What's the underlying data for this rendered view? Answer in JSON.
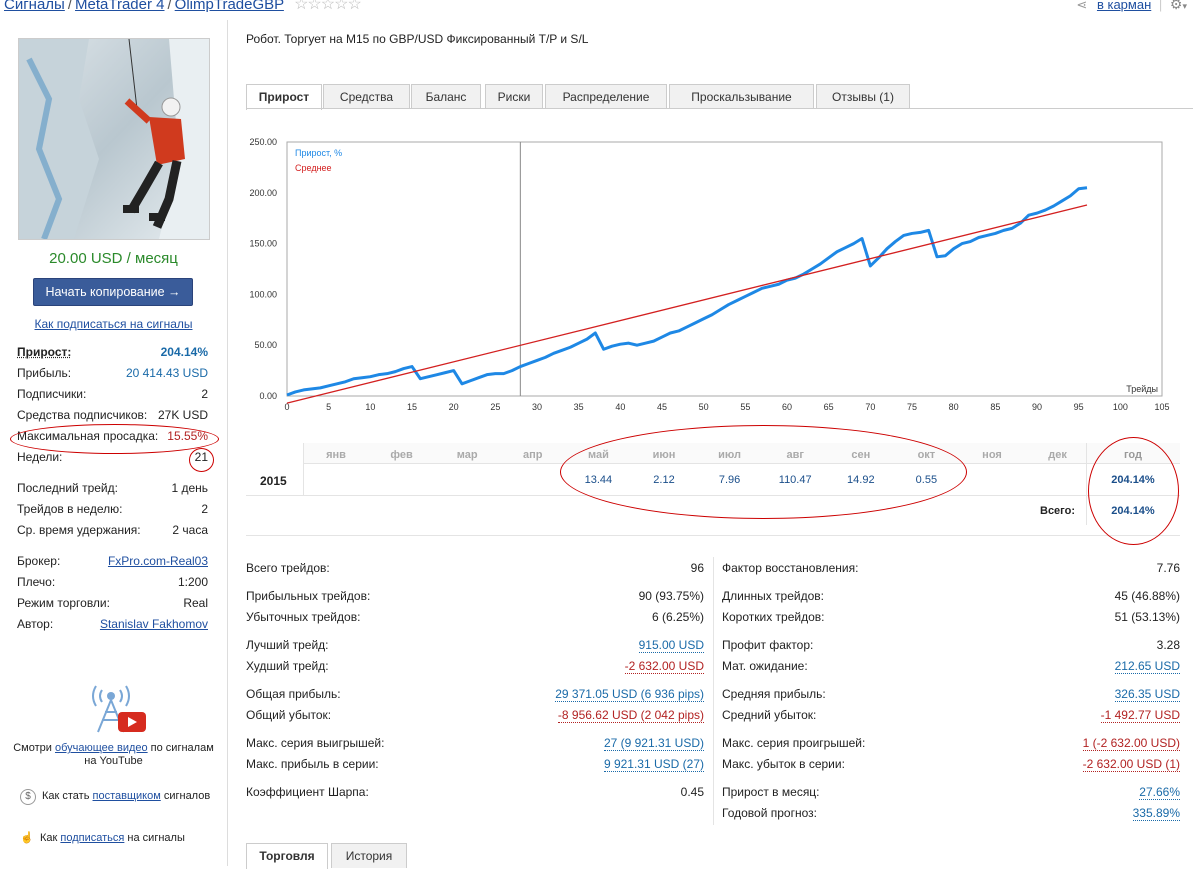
{
  "breadcrumb": {
    "items": [
      "Сигналы",
      "MetaTrader 4",
      "OlimpTradeGBP"
    ]
  },
  "header": {
    "pocket_link": "в карман"
  },
  "sidebar": {
    "price": "20.00 USD / месяц",
    "copy_button": "Начать копирование →",
    "how_to_subscribe": "Как подписаться на сигналы",
    "stats": [
      {
        "label": "Прирост:",
        "value": "204.14%"
      },
      {
        "label": "Прибыль:",
        "value": "20 414.43 USD"
      },
      {
        "label": "Подписчики:",
        "value": "2"
      },
      {
        "label": "Средства подписчиков:",
        "value": "27K USD"
      },
      {
        "label": "Максимальная просадка:",
        "value": "15.55%"
      },
      {
        "label": "Недели:",
        "value": "21"
      },
      {
        "label": "Последний трейд:",
        "value": "1 день"
      },
      {
        "label": "Трейдов в неделю:",
        "value": "2"
      },
      {
        "label": "Ср. время удержания:",
        "value": "2 часа"
      },
      {
        "label": "Брокер:",
        "value": "FxPro.com-Real03"
      },
      {
        "label": "Плечо:",
        "value": "1:200"
      },
      {
        "label": "Режим торговли:",
        "value": "Real"
      },
      {
        "label": "Автор:",
        "value": "Stanislav Fakhomov"
      }
    ],
    "video_text_1": "Смотри ",
    "video_link": "обучающее видео",
    "video_text_2": " по сигналам",
    "video_text_3": "на YouTube",
    "provider_text_1": "Как стать ",
    "provider_link": "поставщиком",
    "provider_text_2": " сигналов",
    "subscribe_text_1": "Как ",
    "subscribe_link": "подписаться",
    "subscribe_text_2": " на сигналы"
  },
  "main": {
    "subtitle": "Робот. Торгует на M15 по GBP/USD  Фиксированный T/P и S/L",
    "tabs": [
      "Прирост",
      "Средства",
      "Баланс",
      "Риски",
      "Распределение",
      "Проскальзывание",
      "Отзывы (1)"
    ],
    "bottom_tabs": [
      "Торговля",
      "История"
    ]
  },
  "chart_data": {
    "type": "line",
    "legend": [
      "Прирост, %",
      "Среднее"
    ],
    "xlabel": "Трейды",
    "xlim": [
      0,
      105
    ],
    "ylim": [
      0,
      250
    ],
    "x_ticks": [
      0,
      5,
      10,
      15,
      20,
      25,
      30,
      35,
      40,
      45,
      50,
      55,
      60,
      65,
      70,
      75,
      80,
      85,
      90,
      95,
      100,
      105
    ],
    "y_ticks": [
      "0.00",
      "50.00",
      "100.00",
      "150.00",
      "200.00",
      "250.00"
    ],
    "series": [
      {
        "name": "Прирост, %",
        "color": "#1e88e5",
        "x": [
          0,
          1,
          2,
          3,
          4,
          5,
          6,
          7,
          8,
          9,
          10,
          11,
          12,
          13,
          14,
          15,
          16,
          17,
          18,
          19,
          20,
          21,
          22,
          23,
          24,
          25,
          26,
          27,
          28,
          29,
          30,
          31,
          32,
          33,
          34,
          35,
          36,
          37,
          38,
          39,
          40,
          41,
          42,
          43,
          44,
          45,
          46,
          47,
          48,
          49,
          50,
          51,
          52,
          53,
          54,
          55,
          56,
          57,
          58,
          59,
          60,
          61,
          62,
          63,
          64,
          65,
          66,
          67,
          68,
          69,
          70,
          71,
          72,
          73,
          74,
          75,
          76,
          77,
          78,
          79,
          80,
          81,
          82,
          83,
          84,
          85,
          86,
          87,
          88,
          89,
          90,
          91,
          92,
          93,
          94,
          95,
          96
        ],
        "y": [
          1,
          4,
          6,
          7,
          8,
          10,
          12,
          14,
          17,
          18,
          19,
          21,
          22,
          24,
          27,
          29,
          17,
          19,
          21,
          23,
          25,
          12,
          15,
          18,
          21,
          22,
          22,
          25,
          29,
          32,
          35,
          38,
          42,
          45,
          48,
          52,
          56,
          62,
          46,
          49,
          51,
          52,
          50,
          52,
          54,
          58,
          62,
          64,
          68,
          72,
          76,
          80,
          85,
          90,
          94,
          98,
          102,
          106,
          108,
          110,
          114,
          116,
          120,
          125,
          130,
          136,
          142,
          146,
          150,
          155,
          128,
          136,
          145,
          152,
          158,
          160,
          161,
          163,
          137,
          138,
          145,
          150,
          152,
          156,
          158,
          160,
          163,
          165,
          170,
          178,
          180,
          183,
          187,
          192,
          197,
          204,
          205
        ]
      },
      {
        "name": "Среднее",
        "color": "#d32020",
        "x": [
          0,
          96
        ],
        "y": [
          -7,
          188
        ]
      }
    ],
    "cursor_x": 28
  },
  "monthly": {
    "months": [
      "янв",
      "фев",
      "мар",
      "апр",
      "май",
      "июн",
      "июл",
      "авг",
      "сен",
      "окт",
      "ноя",
      "дек"
    ],
    "year_header": "год",
    "year": "2015",
    "values": [
      "",
      "",
      "",
      "",
      "13.44",
      "2.12",
      "7.96",
      "110.47",
      "14.92",
      "0.55",
      "",
      ""
    ],
    "year_total": "204.14%",
    "total_label": "Всего:",
    "total_value": "204.14%"
  },
  "stats_left": [
    {
      "label": "Всего трейдов:",
      "value": "96"
    },
    {
      "label": "Прибыльных трейдов:",
      "value": "90 (93.75%)"
    },
    {
      "label": "Убыточных трейдов:",
      "value": "6 (6.25%)"
    },
    {
      "label": "Лучший трейд:",
      "value": "915.00 USD"
    },
    {
      "label": "Худший трейд:",
      "value": "-2 632.00 USD"
    },
    {
      "label": "Общая прибыль:",
      "value": "29 371.05 USD (6 936 pips)"
    },
    {
      "label": "Общий убыток:",
      "value": "-8 956.62 USD (2 042 pips)"
    },
    {
      "label": "Макс. серия выигрышей:",
      "value": "27 (9 921.31 USD)"
    },
    {
      "label": "Макс. прибыль в серии:",
      "value": "9 921.31 USD (27)"
    },
    {
      "label": "Коэффициент Шарпа:",
      "value": "0.45"
    }
  ],
  "stats_right": [
    {
      "label": "Фактор восстановления:",
      "value": "7.76"
    },
    {
      "label": "Длинных трейдов:",
      "value": "45 (46.88%)"
    },
    {
      "label": "Коротких трейдов:",
      "value": "51 (53.13%)"
    },
    {
      "label": "Профит фактор:",
      "value": "3.28"
    },
    {
      "label": "Мат. ожидание:",
      "value": "212.65 USD"
    },
    {
      "label": "Средняя прибыль:",
      "value": "326.35 USD"
    },
    {
      "label": "Средний убыток:",
      "value": "-1 492.77 USD"
    },
    {
      "label": "Макс. серия проигрышей:",
      "value": "1 (-2 632.00 USD)"
    },
    {
      "label": "Макс. убыток в серии:",
      "value": "-2 632.00 USD (1)"
    },
    {
      "label": "Прирост в месяц:",
      "value": "27.66%"
    },
    {
      "label": "Годовой прогноз:",
      "value": "335.89%"
    }
  ]
}
